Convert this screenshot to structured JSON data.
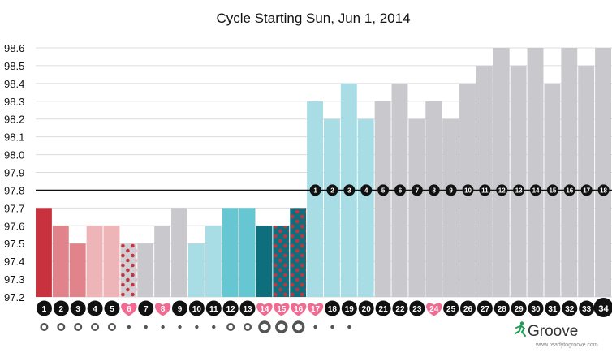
{
  "chart_data": {
    "type": "bar",
    "title": "Cycle Starting Sun, Jun 1, 2014",
    "xlabel": "",
    "ylabel": "",
    "ylim": [
      97.2,
      98.6
    ],
    "yticks": [
      "98.6",
      "98.5",
      "98.4",
      "98.3",
      "98.2",
      "98.1",
      "98.0",
      "97.9",
      "97.8",
      "97.7",
      "97.6",
      "97.5",
      "97.4",
      "97.3",
      "97.2"
    ],
    "reference_line": 97.8,
    "categories": [
      "1",
      "2",
      "3",
      "4",
      "5",
      "6",
      "7",
      "8",
      "9",
      "10",
      "11",
      "12",
      "13",
      "14",
      "15",
      "16",
      "17",
      "18",
      "19",
      "20",
      "21",
      "22",
      "23",
      "24",
      "25",
      "26",
      "27",
      "28",
      "29",
      "30",
      "31",
      "32",
      "33",
      "34"
    ],
    "values": [
      97.7,
      97.6,
      97.5,
      97.6,
      97.6,
      97.5,
      97.5,
      97.6,
      97.7,
      97.5,
      97.6,
      97.7,
      97.7,
      97.6,
      97.6,
      97.7,
      98.3,
      98.2,
      98.4,
      98.2,
      98.3,
      98.4,
      98.2,
      98.3,
      98.2,
      98.4,
      98.5,
      98.6,
      98.5,
      98.6,
      98.4,
      98.6,
      98.5,
      98.6
    ],
    "bar_colors": [
      "#c8323e",
      "#e0838a",
      "#e0838a",
      "#eeb5b8",
      "#eeb5b8",
      "#cfcfd3",
      "#c9c9cd",
      "#c9c9cd",
      "#c9c9cd",
      "#a9dde5",
      "#a9dde5",
      "#66c7d2",
      "#66c7d2",
      "#0f6e7c",
      "#0f6e7c",
      "#0f6e7c",
      "#a9dde5",
      "#a9dde5",
      "#a9dde5",
      "#a9dde5",
      "#c9c9cd",
      "#c9c9cd",
      "#c9c9cd",
      "#c9c9cd",
      "#c9c9cd",
      "#c9c9cd",
      "#c9c9cd",
      "#c9c9cd",
      "#c9c9cd",
      "#c9c9cd",
      "#c9c9cd",
      "#c9c9cd",
      "#c9c9cd",
      "#c9c9cd"
    ],
    "dotted_days": [
      6,
      15,
      16
    ],
    "dot_colors": {
      "6": "#c8323e",
      "15": "#c8323e",
      "16": "#c8323e"
    },
    "heart_days": [
      6,
      8,
      14,
      15,
      16,
      17,
      24
    ],
    "heart_color": "#f06b92",
    "temp_count_labels": [
      "1",
      "2",
      "3",
      "4",
      "5",
      "6",
      "7",
      "8",
      "9",
      "10",
      "11",
      "12",
      "13",
      "14",
      "15",
      "16",
      "17",
      "18"
    ],
    "temp_count_start_day": 17,
    "day_badge_color": "#111111",
    "current_day": 34,
    "indicator_rings": {
      "1": "medium",
      "2": "medium",
      "3": "medium",
      "4": "medium",
      "5": "medium",
      "6": "dot",
      "7": "dot",
      "8": "dot",
      "9": "dot",
      "10": "dot",
      "11": "dot",
      "12": "medium",
      "13": "medium",
      "14": "large",
      "15": "large",
      "16": "large",
      "17": "dot",
      "18": "dot",
      "19": "dot"
    }
  },
  "branding": {
    "logo_text": "Groove",
    "website": "www.readytogroove.com",
    "logo_color": "#1d9e56"
  }
}
